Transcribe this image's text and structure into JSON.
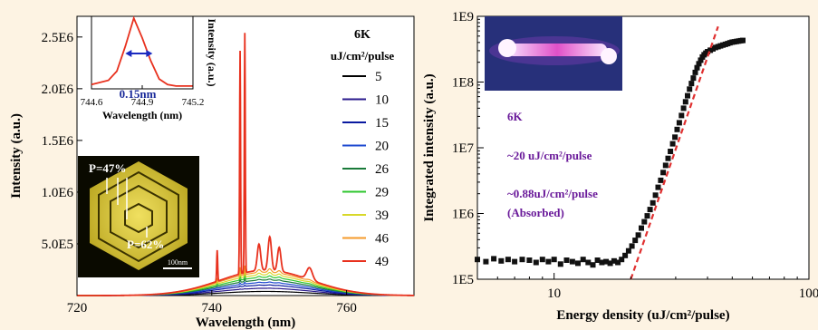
{
  "chart_data": [
    {
      "type": "line",
      "xlabel": "Wavelength (nm)",
      "ylabel": "Intensity (a.u.)",
      "xlim": [
        720,
        770
      ],
      "ylim": [
        0,
        2700000
      ],
      "x_ticks": [
        720,
        740,
        760
      ],
      "x_tick_labels": [
        "720",
        "740",
        "760"
      ],
      "y_ticks": [
        500000,
        1000000,
        1500000,
        2000000,
        2500000
      ],
      "y_tick_labels": [
        "5.0E5",
        "1.0E6",
        "1.5E6",
        "2.0E6",
        "2.5E6"
      ],
      "legend_header": [
        "6K",
        "uJ/cm²/pulse"
      ],
      "legend_position": "right",
      "peaks": [
        {
          "wavelength": 740.8,
          "relative_height": 0.13
        },
        {
          "wavelength": 744.2,
          "relative_height": 0.93
        },
        {
          "wavelength": 744.9,
          "relative_height": 1.0
        },
        {
          "wavelength": 747.0,
          "relative_height": 0.11
        },
        {
          "wavelength": 748.6,
          "relative_height": 0.14
        },
        {
          "wavelength": 750.0,
          "relative_height": 0.1
        },
        {
          "wavelength": 754.5,
          "relative_height": 0.05
        }
      ],
      "series": [
        {
          "name": "5",
          "color": "#000000",
          "background": 40000,
          "peak_max": 0
        },
        {
          "name": "10",
          "color": "#2a1a8c",
          "background": 70000,
          "peak_max": 10000
        },
        {
          "name": "15",
          "color": "#0a1aa0",
          "background": 100000,
          "peak_max": 25000
        },
        {
          "name": "20",
          "color": "#1e4ad0",
          "background": 125000,
          "peak_max": 45000
        },
        {
          "name": "26",
          "color": "#1a7a3a",
          "background": 150000,
          "peak_max": 70000
        },
        {
          "name": "29",
          "color": "#2ec62e",
          "background": 175000,
          "peak_max": 110000
        },
        {
          "name": "39",
          "color": "#d8d82a",
          "background": 200000,
          "peak_max": 170000
        },
        {
          "name": "46",
          "color": "#f59a2a",
          "background": 225000,
          "peak_max": 250000
        },
        {
          "name": "49",
          "color": "#e8311e",
          "background": 245000,
          "peak_max": 2320000
        }
      ],
      "inset_spectrum": {
        "xlabel": "Wavelength (nm)",
        "ylabel": "Intensity (a.u.)",
        "xlim": [
          744.6,
          745.2
        ],
        "x_tick_labels": [
          "744.6",
          "744.9",
          "745.2"
        ],
        "x": [
          744.6,
          744.7,
          744.75,
          744.8,
          744.85,
          744.9,
          744.95,
          745.0,
          745.05,
          745.1,
          745.2
        ],
        "y": [
          0.06,
          0.12,
          0.25,
          0.6,
          1.0,
          0.72,
          0.4,
          0.14,
          0.06,
          0.04,
          0.04
        ],
        "linewidth_label": "0.15nm",
        "color": "#e8311e"
      },
      "inset_image": {
        "label_1": "P=47%",
        "label_2": "P=62%",
        "scale_bar": "100nm"
      }
    },
    {
      "type": "scatter",
      "xlabel": "Energy density (uJ/cm²/pulse)",
      "ylabel": "Integrated intensity (a.u.)",
      "x_scale": "log",
      "y_scale": "log",
      "xlim": [
        5,
        100
      ],
      "ylim": [
        100000,
        1000000000
      ],
      "x_ticks": [
        10,
        100
      ],
      "x_tick_labels": [
        "10",
        "100"
      ],
      "y_ticks": [
        100000,
        1000000,
        10000000,
        100000000,
        1000000000
      ],
      "y_tick_labels": [
        "1E5",
        "1E6",
        "1E7",
        "1E8",
        "1E9"
      ],
      "x": [
        5.0,
        5.4,
        5.8,
        6.2,
        6.6,
        7.0,
        7.5,
        8.0,
        8.5,
        9.0,
        9.5,
        10.0,
        10.6,
        11.2,
        11.8,
        12.4,
        13.0,
        13.6,
        14.2,
        14.8,
        15.4,
        16.0,
        16.6,
        17.2,
        17.8,
        18.4,
        19.0,
        19.6,
        20.2,
        20.8,
        21.4,
        22.0,
        22.6,
        23.2,
        23.8,
        24.4,
        25.0,
        25.6,
        26.2,
        26.8,
        27.4,
        28.0,
        28.6,
        29.2,
        29.8,
        30.4,
        31.0,
        31.6,
        32.2,
        32.8,
        33.4,
        34.0,
        34.6,
        35.2,
        35.8,
        36.4,
        37.0,
        37.6,
        38.2,
        38.8,
        39.4,
        40.0,
        41.0,
        42.0,
        43.0,
        44.0,
        45.0,
        46.0,
        47.0,
        48.0,
        49.0,
        50.0,
        51.0,
        52.0,
        53.0,
        54.0,
        55.0
      ],
      "y": [
        200000,
        185000,
        205000,
        190000,
        200000,
        185000,
        200000,
        195000,
        180000,
        200000,
        185000,
        200000,
        170000,
        195000,
        185000,
        175000,
        200000,
        180000,
        165000,
        195000,
        180000,
        185000,
        175000,
        190000,
        180000,
        200000,
        230000,
        270000,
        320000,
        390000,
        470000,
        600000,
        750000,
        920000,
        1150000,
        1450000,
        1900000,
        2500000,
        3200000,
        4200000,
        5400000,
        6900000,
        8800000,
        11500000,
        14500000,
        19000000,
        24000000,
        31000000,
        40000000,
        50000000,
        62000000,
        78000000,
        95000000,
        115000000,
        140000000,
        165000000,
        190000000,
        215000000,
        240000000,
        260000000,
        275000000,
        290000000,
        305000000,
        320000000,
        335000000,
        345000000,
        355000000,
        365000000,
        375000000,
        385000000,
        395000000,
        405000000,
        410000000,
        415000000,
        420000000,
        425000000,
        430000000
      ],
      "fit_line": {
        "x": [
          20,
          44
        ],
        "y": [
          100000,
          700000000
        ],
        "color": "#e03030",
        "style": "dashed"
      },
      "annotations": [
        {
          "text": "6K",
          "color": "#6a1a9a"
        },
        {
          "text": "~20 uJ/cm²/pulse",
          "color": "#6a1a9a"
        },
        {
          "text": "~0.88uJ/cm²/pulse",
          "color": "#6a1a9a"
        },
        {
          "text": "(Absorbed)",
          "color": "#6a1a9a"
        }
      ]
    }
  ]
}
